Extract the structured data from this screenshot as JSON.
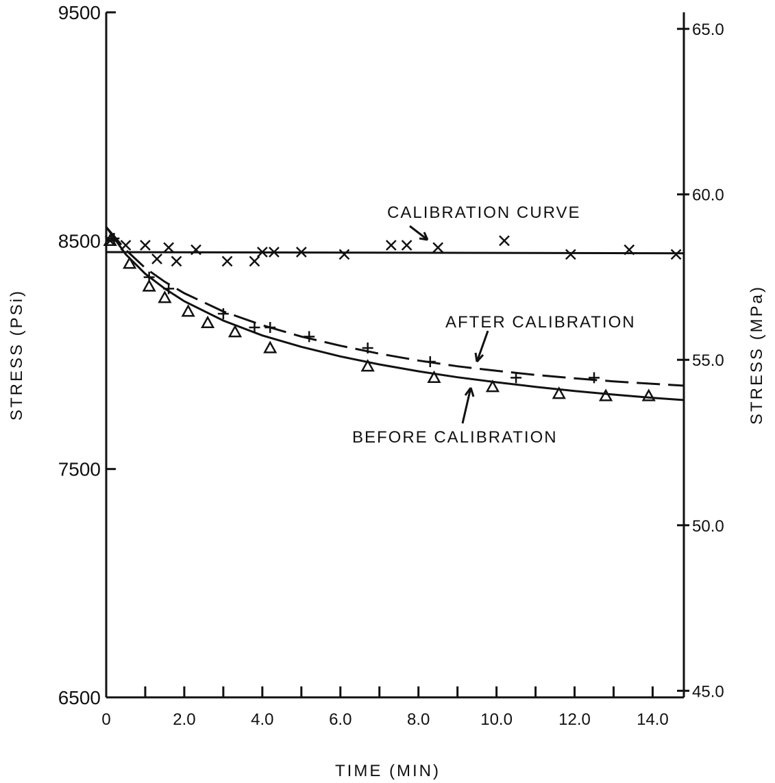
{
  "chart_data": {
    "type": "scatter",
    "xlabel": "TIME (MIN)",
    "ylabel": "STRESS (PSi)",
    "ylabel_right": "STRESS (MPa)",
    "xlim": [
      0,
      14.8
    ],
    "ylim": [
      6500,
      9500
    ],
    "ylim_right": [
      44.8,
      65.5
    ],
    "x_ticks": [
      "0",
      "2.0",
      "4.0",
      "6.0",
      "8.0",
      "10.0",
      "12.0",
      "14.0"
    ],
    "y_ticks": [
      "6500",
      "7500",
      "8500",
      "9500"
    ],
    "y_right_ticks": [
      "45.0",
      "50.0",
      "55.0",
      "60.0",
      "65.0"
    ],
    "grid": false,
    "series": [
      {
        "name": "CALIBRATION CURVE",
        "marker": "x",
        "line": "solid",
        "x": [
          0.1,
          0.5,
          1.0,
          1.3,
          1.6,
          1.8,
          2.3,
          3.1,
          3.8,
          4.0,
          4.3,
          5.0,
          6.1,
          7.3,
          7.7,
          8.5,
          10.2,
          11.9,
          13.4,
          14.6
        ],
        "y": [
          8500,
          8480,
          8480,
          8420,
          8470,
          8410,
          8460,
          8410,
          8410,
          8450,
          8450,
          8450,
          8440,
          8480,
          8480,
          8470,
          8500,
          8440,
          8460,
          8440
        ],
        "fit_x": [
          0,
          14.8
        ],
        "fit_y": [
          8450,
          8445
        ]
      },
      {
        "name": "AFTER CALIBRATION",
        "marker": "+",
        "line": "dashed",
        "x": [
          0.2,
          1.1,
          1.6,
          3.0,
          3.8,
          4.2,
          5.2,
          6.7,
          8.3,
          10.5,
          12.5
        ],
        "y": [
          8510,
          8340,
          8290,
          8180,
          8120,
          8120,
          8080,
          8030,
          7970,
          7900,
          7900
        ],
        "fit_x": [
          0,
          0.5,
          1,
          1.5,
          2,
          3,
          4,
          5,
          6,
          7,
          8,
          9,
          10,
          11,
          12,
          13,
          14,
          14.8
        ],
        "fit_y": [
          8560,
          8460,
          8380,
          8320,
          8270,
          8190,
          8130,
          8080,
          8040,
          8005,
          7975,
          7950,
          7930,
          7912,
          7897,
          7884,
          7873,
          7865
        ]
      },
      {
        "name": "BEFORE CALIBRATION",
        "marker": "triangle",
        "line": "solid",
        "x": [
          0.1,
          0.6,
          1.1,
          1.5,
          2.1,
          2.6,
          3.3,
          4.2,
          6.7,
          8.4,
          9.9,
          11.6,
          12.8,
          13.9
        ],
        "y": [
          8500,
          8400,
          8300,
          8250,
          8190,
          8140,
          8100,
          8030,
          7950,
          7900,
          7860,
          7830,
          7820,
          7820
        ],
        "fit_x": [
          0,
          0.5,
          1,
          1.5,
          2,
          3,
          4,
          5,
          6,
          7,
          8,
          9,
          10,
          11,
          12,
          13,
          14,
          14.8
        ],
        "fit_y": [
          8560,
          8440,
          8355,
          8290,
          8235,
          8150,
          8085,
          8035,
          7993,
          7958,
          7928,
          7902,
          7880,
          7860,
          7842,
          7826,
          7812,
          7802
        ]
      }
    ],
    "annotations": [
      {
        "text": "CALIBRATION CURVE",
        "x": 7.8,
        "y": 8630
      },
      {
        "text": "AFTER CALIBRATION",
        "x": 11.3,
        "y": 8150
      },
      {
        "text": "BEFORE CALIBRATION",
        "x": 8.9,
        "y": 7630
      }
    ]
  }
}
